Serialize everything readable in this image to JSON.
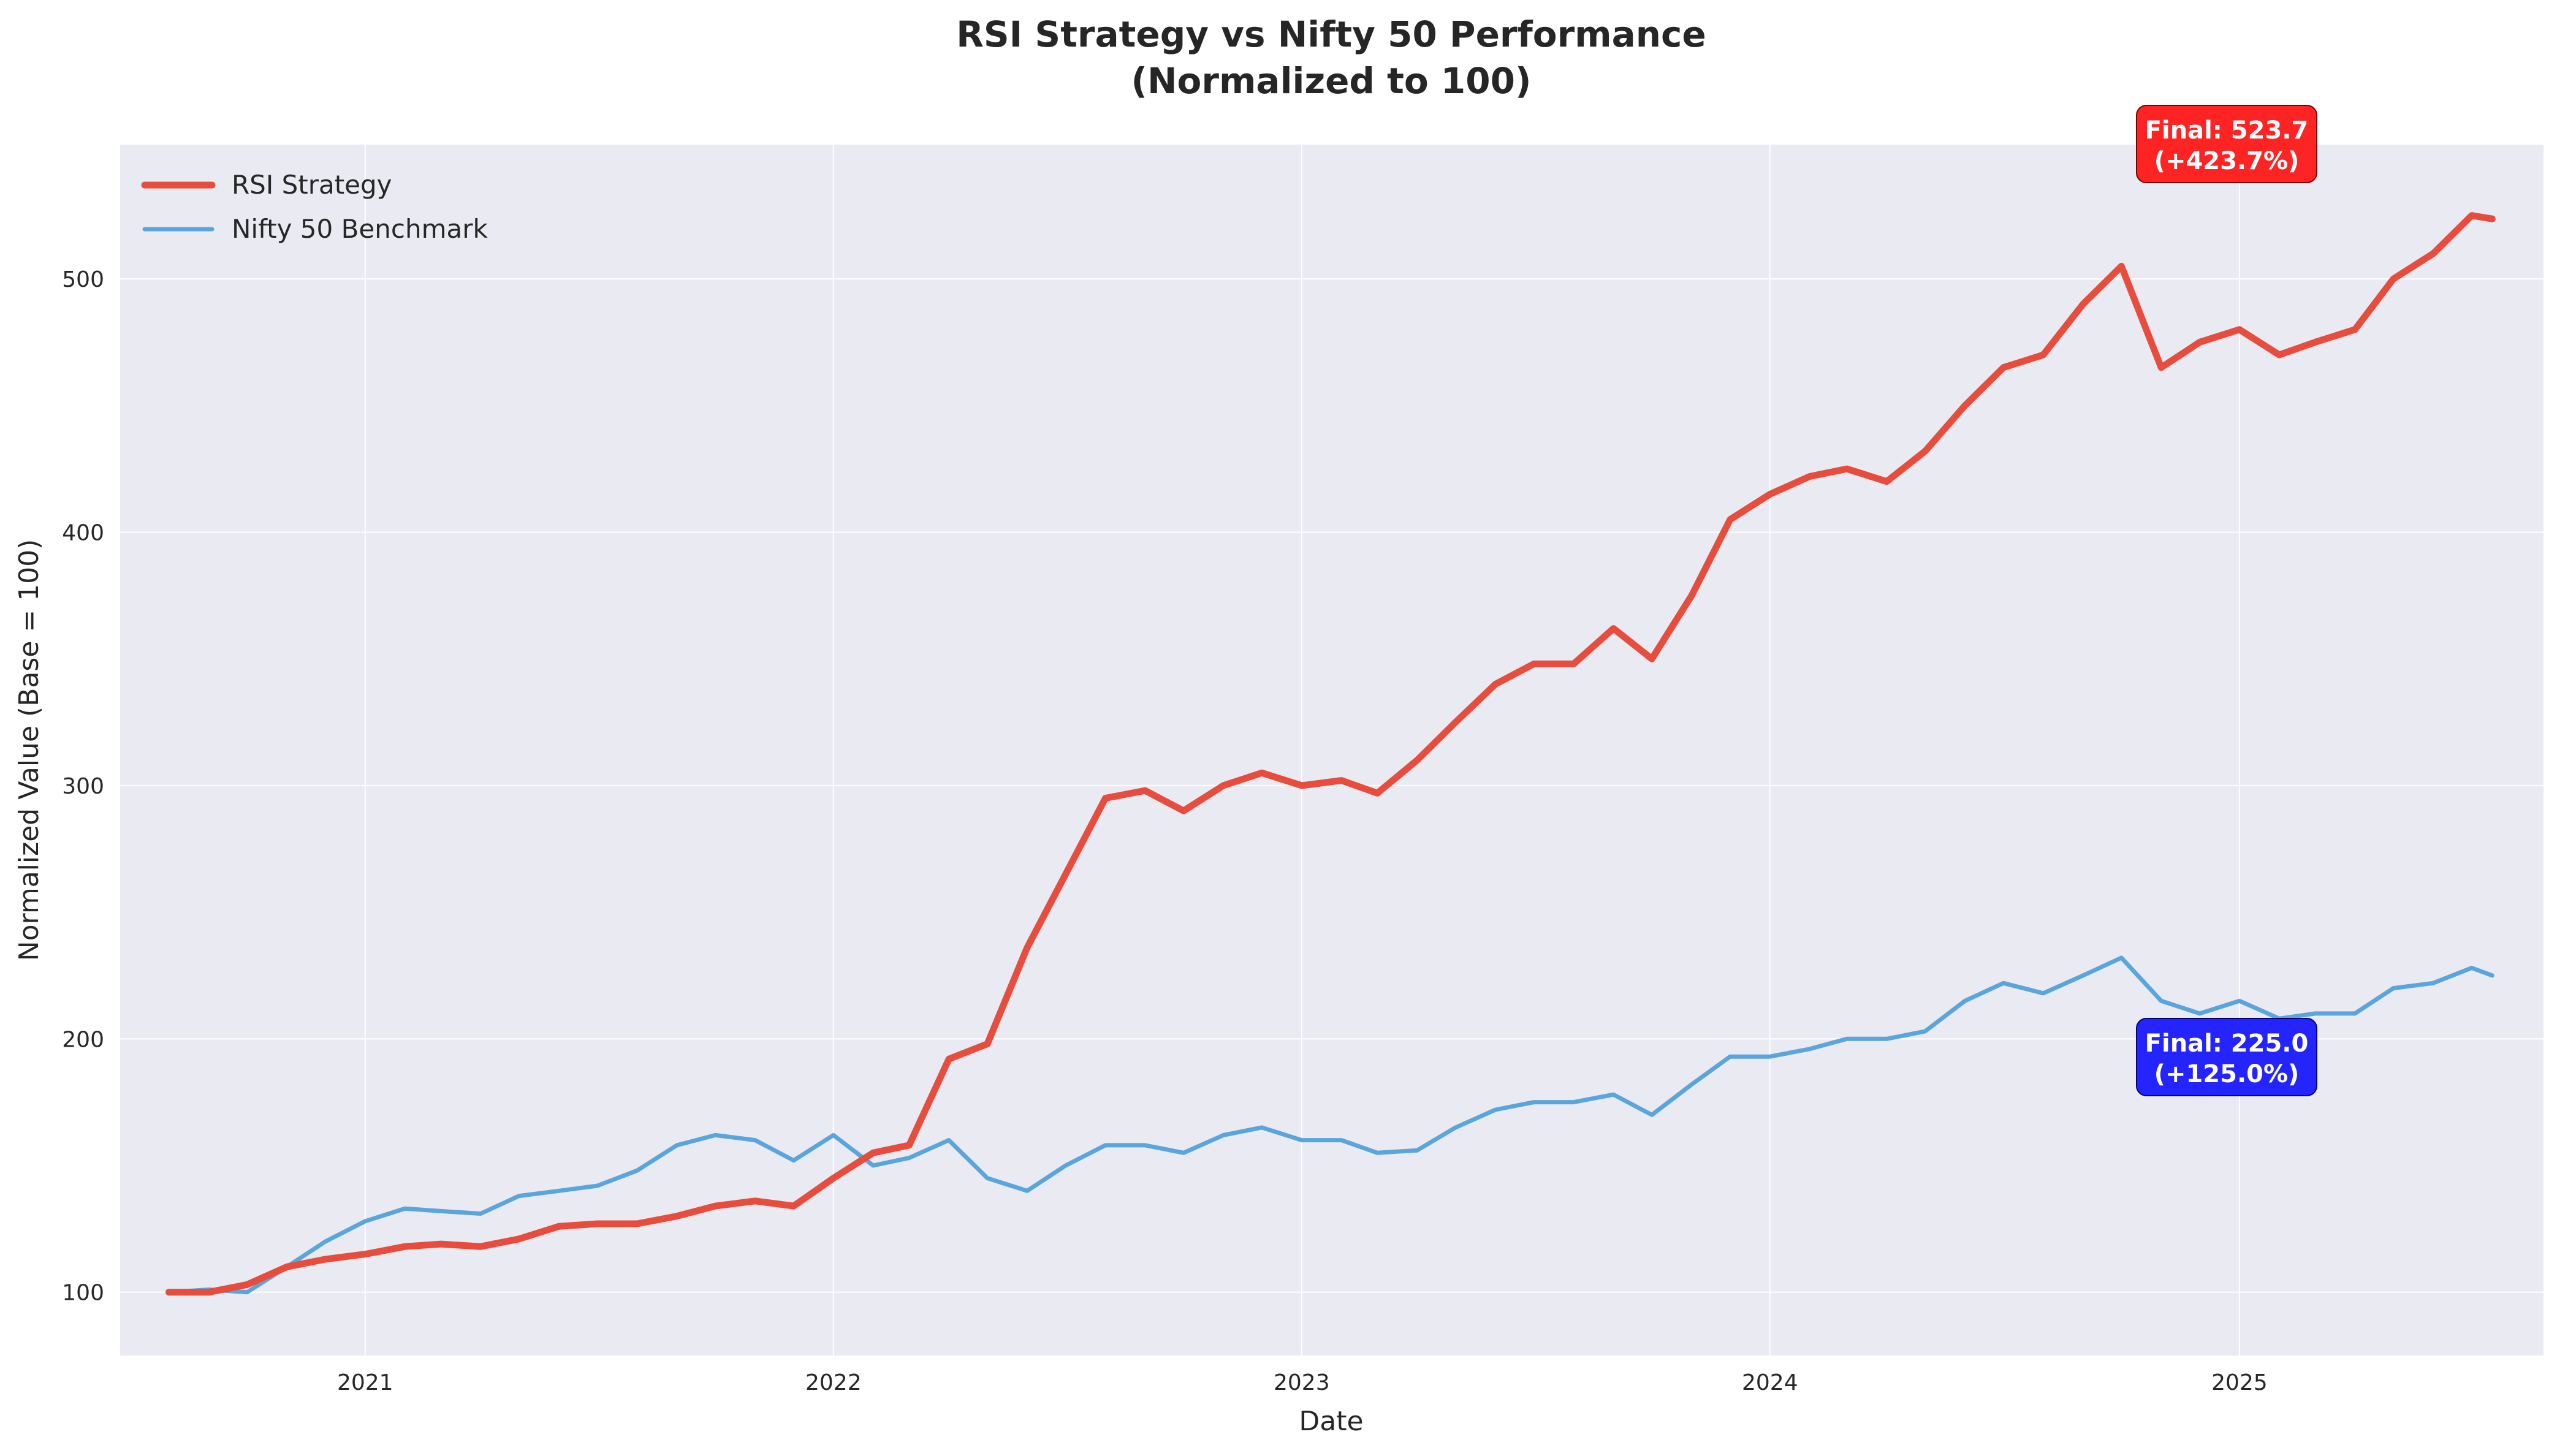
{
  "chart_data": {
    "type": "line",
    "title_line1": "RSI Strategy vs Nifty 50 Performance",
    "title_line2": "(Normalized to 100)",
    "xlabel": "Date",
    "ylabel": "Normalized Value (Base = 100)",
    "x_ticks": [
      "2021",
      "2022",
      "2023",
      "2024",
      "2025"
    ],
    "y_ticks": [
      100,
      200,
      300,
      400,
      500
    ],
    "xlim": [
      "2020-06-24",
      "2025-08-26"
    ],
    "ylim": [
      75,
      553
    ],
    "grid": true,
    "legend_position": "top-left",
    "colors": {
      "rsi": "#e74c3c",
      "nifty": "#5aa5dc",
      "plot_bg": "#eaeaf2",
      "badge_red": "#ff2424",
      "badge_blue": "#2424ff"
    },
    "series": [
      {
        "name": "RSI Strategy",
        "x": [
          "2020-08-01",
          "2020-09-01",
          "2020-10-01",
          "2020-11-01",
          "2020-12-01",
          "2021-01-01",
          "2021-02-01",
          "2021-03-01",
          "2021-04-01",
          "2021-05-01",
          "2021-06-01",
          "2021-07-01",
          "2021-08-01",
          "2021-09-01",
          "2021-10-01",
          "2021-11-01",
          "2021-12-01",
          "2022-01-01",
          "2022-02-01",
          "2022-03-01",
          "2022-04-01",
          "2022-05-01",
          "2022-06-01",
          "2022-07-01",
          "2022-08-01",
          "2022-09-01",
          "2022-10-01",
          "2022-11-01",
          "2022-12-01",
          "2023-01-01",
          "2023-02-01",
          "2023-03-01",
          "2023-04-01",
          "2023-05-01",
          "2023-06-01",
          "2023-07-01",
          "2023-08-01",
          "2023-09-01",
          "2023-10-01",
          "2023-11-01",
          "2023-12-01",
          "2024-01-01",
          "2024-02-01",
          "2024-03-01",
          "2024-04-01",
          "2024-05-01",
          "2024-06-01",
          "2024-07-01",
          "2024-08-01",
          "2024-09-01",
          "2024-10-01",
          "2024-11-01",
          "2024-12-01",
          "2025-01-01",
          "2025-02-01",
          "2025-03-01",
          "2025-04-01",
          "2025-05-01",
          "2025-06-01",
          "2025-07-01",
          "2025-07-17"
        ],
        "values": [
          100,
          100,
          103,
          110,
          113,
          115,
          118,
          119,
          118,
          121,
          126,
          127,
          127,
          130,
          134,
          136,
          134,
          145,
          155,
          158,
          192,
          198,
          236,
          265,
          295,
          298,
          290,
          300,
          305,
          300,
          302,
          297,
          310,
          325,
          340,
          348,
          348,
          362,
          350,
          375,
          405,
          415,
          422,
          425,
          420,
          432,
          450,
          465,
          470,
          490,
          505,
          465,
          475,
          480,
          470,
          475,
          480,
          500,
          510,
          525,
          523.7
        ]
      },
      {
        "name": "Nifty 50 Benchmark",
        "x": [
          "2020-08-01",
          "2020-09-01",
          "2020-10-01",
          "2020-11-01",
          "2020-12-01",
          "2021-01-01",
          "2021-02-01",
          "2021-03-01",
          "2021-04-01",
          "2021-05-01",
          "2021-06-01",
          "2021-07-01",
          "2021-08-01",
          "2021-09-01",
          "2021-10-01",
          "2021-11-01",
          "2021-12-01",
          "2022-01-01",
          "2022-02-01",
          "2022-03-01",
          "2022-04-01",
          "2022-05-01",
          "2022-06-01",
          "2022-07-01",
          "2022-08-01",
          "2022-09-01",
          "2022-10-01",
          "2022-11-01",
          "2022-12-01",
          "2023-01-01",
          "2023-02-01",
          "2023-03-01",
          "2023-04-01",
          "2023-05-01",
          "2023-06-01",
          "2023-07-01",
          "2023-08-01",
          "2023-09-01",
          "2023-10-01",
          "2023-11-01",
          "2023-12-01",
          "2024-01-01",
          "2024-02-01",
          "2024-03-01",
          "2024-04-01",
          "2024-05-01",
          "2024-06-01",
          "2024-07-01",
          "2024-08-01",
          "2024-09-01",
          "2024-10-01",
          "2024-11-01",
          "2024-12-01",
          "2025-01-01",
          "2025-02-01",
          "2025-03-01",
          "2025-04-01",
          "2025-05-01",
          "2025-06-01",
          "2025-07-01",
          "2025-07-17"
        ],
        "values": [
          100,
          101,
          100,
          110,
          120,
          128,
          133,
          132,
          131,
          138,
          140,
          142,
          148,
          158,
          162,
          160,
          152,
          162,
          150,
          153,
          160,
          145,
          140,
          150,
          158,
          158,
          155,
          162,
          165,
          160,
          160,
          155,
          156,
          165,
          172,
          175,
          175,
          178,
          170,
          182,
          193,
          193,
          196,
          200,
          200,
          203,
          215,
          222,
          218,
          225,
          232,
          215,
          210,
          215,
          208,
          210,
          210,
          220,
          222,
          228,
          225
        ]
      }
    ],
    "annotations": [
      {
        "text_line1": "Final: 523.7",
        "text_line2": "(+423.7%)"
      },
      {
        "text_line1": "Final: 225.0",
        "text_line2": "(+125.0%)"
      }
    ]
  }
}
